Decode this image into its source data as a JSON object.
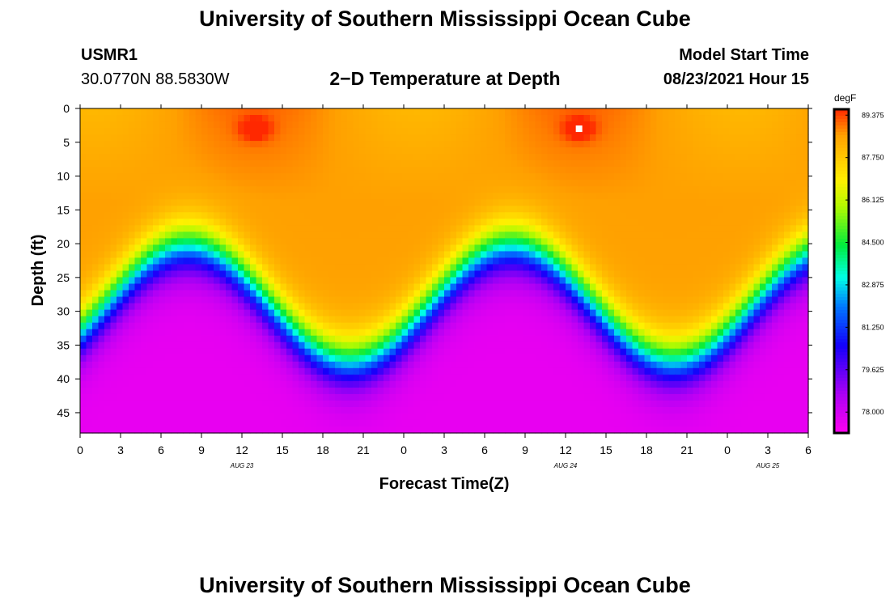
{
  "header": {
    "title": "University of Southern Mississippi Ocean Cube",
    "station": "USMR1",
    "coords": "30.0770N  88.5830W",
    "plot_title": "2−D Temperature at Depth",
    "model_start_label": "Model Start Time",
    "model_start_value": "08/23/2021 Hour 15"
  },
  "footer": {
    "title": "University of Southern Mississippi Ocean Cube"
  },
  "chart_data": {
    "type": "heatmap",
    "title": "2−D Temperature at Depth",
    "xlabel": "Forecast Time(Z)",
    "ylabel": "Depth (ft)",
    "x_ticks": [
      "0",
      "3",
      "6",
      "9",
      "12",
      "15",
      "18",
      "21",
      "0",
      "3",
      "6",
      "9",
      "12",
      "15",
      "18",
      "21",
      "0",
      "3",
      "6"
    ],
    "x_range_hours": [
      0,
      54
    ],
    "date_labels": [
      {
        "label": "AUG 23",
        "hour": 12
      },
      {
        "label": "AUG 24",
        "hour": 36
      },
      {
        "label": "AUG 25",
        "hour": 51
      }
    ],
    "y_ticks": [
      0,
      5,
      10,
      15,
      20,
      25,
      30,
      35,
      40,
      45
    ],
    "y_range_ft": [
      0,
      48
    ],
    "colorbar": {
      "unit": "degF",
      "tick_labels": [
        "89.375",
        "87.750",
        "86.125",
        "84.500",
        "82.875",
        "81.250",
        "79.625",
        "78.000"
      ],
      "tick_values": [
        89.375,
        87.75,
        86.125,
        84.5,
        82.875,
        81.25,
        79.625,
        78.0
      ],
      "range": [
        77.2,
        89.6
      ]
    },
    "field": {
      "surface_temp_f": 88.6,
      "bottom_temp_f": 77.6,
      "mixed_layer": {
        "base_depth_ft": 29,
        "amplitude_ft": 8.5,
        "period_hours": 24,
        "shallowest_at_hour": 8,
        "gradient_width_ft": 9
      },
      "hot_spots": [
        {
          "hour": 13,
          "depth_ft": 3,
          "temp_f": 89.6
        },
        {
          "hour": 37,
          "depth_ft": 3,
          "temp_f": 89.6
        }
      ]
    }
  }
}
